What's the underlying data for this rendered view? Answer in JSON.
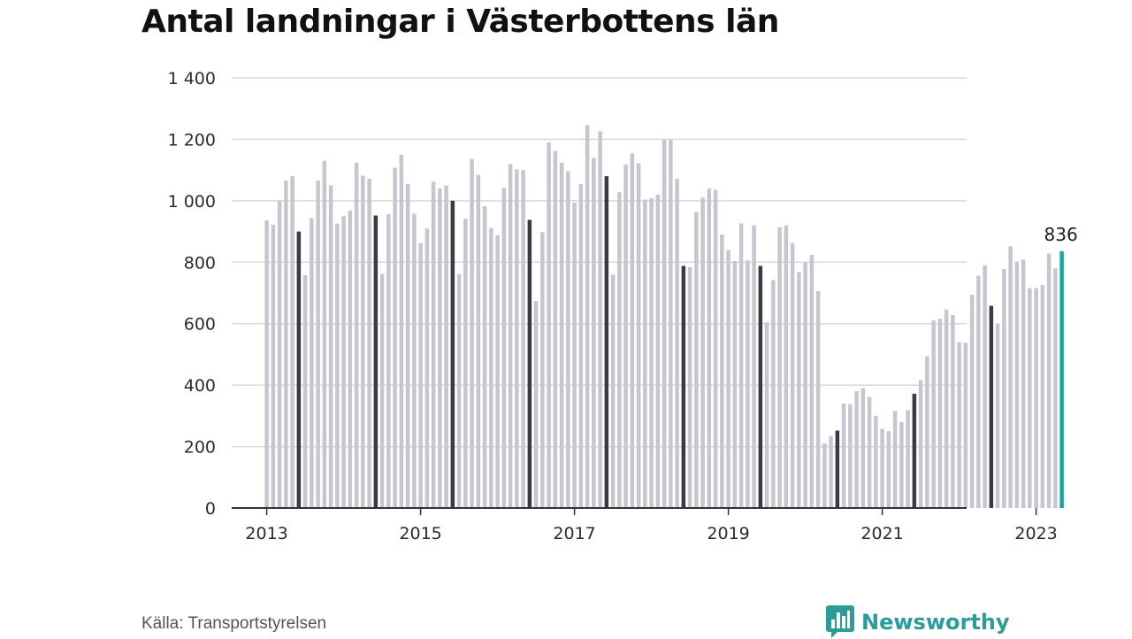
{
  "title": "Antal landningar i Västerbottens län",
  "source": "Källa: Transportstyrelsen",
  "brand": {
    "name": "Newsworthy",
    "icon": "bar-chart-speech-bubble-icon"
  },
  "colors": {
    "bar": "#c6c6d0",
    "highlight_bar": "#3b3b45",
    "last_bar": "#1ba39c",
    "grid": "#d9d9d9",
    "axis": "#333333",
    "brand": "#2a9d9a"
  },
  "chart_data": {
    "type": "bar",
    "title": "Antal landningar i Västerbottens län",
    "xlabel": "",
    "ylabel": "",
    "ylim": [
      0,
      1400
    ],
    "yticks": [
      0,
      200,
      400,
      600,
      800,
      1000,
      1200,
      1400
    ],
    "ytick_labels": [
      "0",
      "200",
      "400",
      "600",
      "800",
      "1 000",
      "1 200",
      "1 400"
    ],
    "xtick_labels": [
      "2013",
      "2015",
      "2017",
      "2019",
      "2021",
      "2023"
    ],
    "xtick_dates": [
      "2013-01",
      "2015-01",
      "2017-01",
      "2019-01",
      "2021-01",
      "2023-01"
    ],
    "grid": true,
    "first_month": "2013-01",
    "last_month": "2023-05",
    "highlight_month": 5,
    "last_value_label": "836",
    "values": [
      936,
      922,
      1000,
      1066,
      1080,
      900,
      758,
      944,
      1066,
      1130,
      1050,
      926,
      950,
      968,
      1124,
      1082,
      1072,
      952,
      762,
      956,
      1108,
      1150,
      1055,
      958,
      862,
      910,
      1062,
      1040,
      1050,
      1000,
      762,
      942,
      1136,
      1084,
      982,
      912,
      888,
      1042,
      1120,
      1102,
      1100,
      938,
      674,
      898,
      1190,
      1162,
      1124,
      1096,
      994,
      1054,
      1246,
      1140,
      1226,
      1080,
      760,
      1028,
      1118,
      1154,
      1122,
      1004,
      1008,
      1020,
      1200,
      1198,
      1072,
      788,
      784,
      964,
      1010,
      1040,
      1036,
      890,
      840,
      804,
      926,
      806,
      920,
      788,
      604,
      742,
      914,
      920,
      862,
      768,
      800,
      824,
      706,
      210,
      234,
      252,
      340,
      338,
      380,
      390,
      362,
      300,
      258,
      250,
      316,
      280,
      318,
      372,
      416,
      494,
      610,
      616,
      646,
      628,
      540,
      538,
      694,
      756,
      790,
      658,
      600,
      778,
      852,
      802,
      808,
      716,
      716,
      726,
      828,
      780,
      836
    ]
  }
}
